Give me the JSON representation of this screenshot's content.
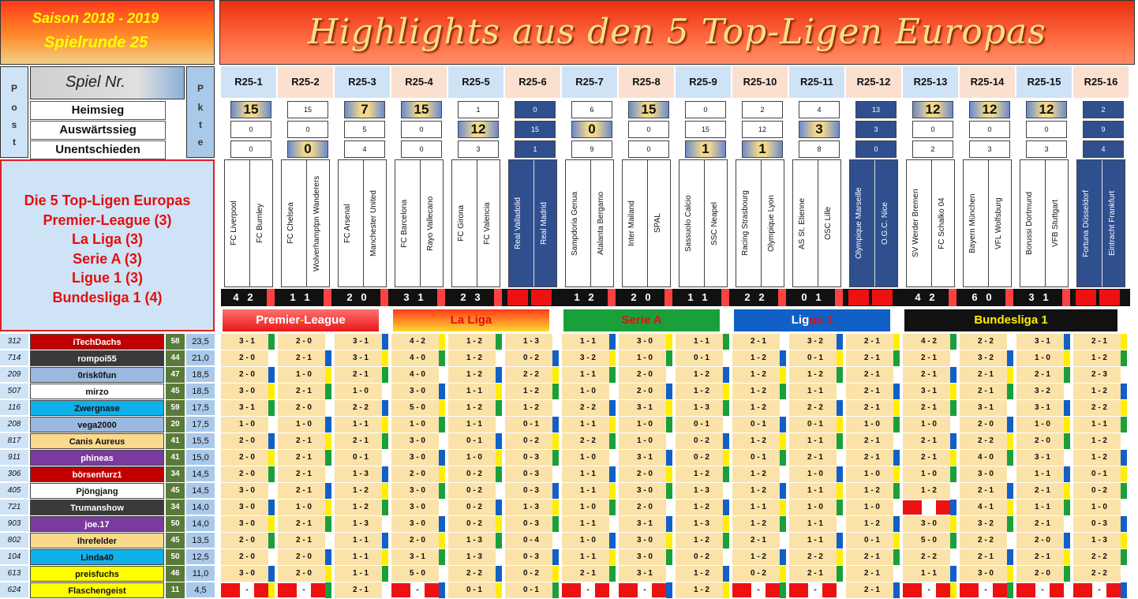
{
  "header": {
    "season": "Saison 2018 - 2019",
    "round": "Spielrunde 25",
    "title": "Highlights aus den 5 Top-Ligen Europas"
  },
  "left": {
    "post_letters": [
      "P",
      "o",
      "s",
      "t"
    ],
    "pkte_letters": [
      "P",
      "k",
      "t",
      "e"
    ],
    "spiel_nr": "Spiel Nr.",
    "heimsieg": "Heimsieg",
    "auswaerts": "Auswärtssieg",
    "unentschieden": "Unentschieden"
  },
  "leagues_box": [
    "Die 5 Top-Ligen Europas",
    "Premier-League (3)",
    "La Liga (3)",
    "Serie A (3)",
    "Ligue 1 (3)",
    "Bundesliga 1 (4)"
  ],
  "league_bars": [
    {
      "pre": "Premier",
      "mid": "-",
      "post": "League",
      "bg": "linear-gradient(180deg,#ff7070,#e81818)",
      "c1": "#ffffff",
      "c2": "#ffe000",
      "c3": "#ffffff"
    },
    {
      "pre": "La Liga",
      "mid": "",
      "post": "",
      "bg": "linear-gradient(180deg,#ff3a1a,#ffd830)",
      "c1": "#e01010",
      "c2": "#e01010",
      "c3": "#e01010"
    },
    {
      "pre": "Serie A",
      "mid": "",
      "post": "",
      "bg": "#1aa03a",
      "c1": "#e01010",
      "c2": "#e01010",
      "c3": "#e01010"
    },
    {
      "pre": "Lig",
      "mid": "ue 1",
      "post": "",
      "bg": "#1060c8",
      "c1": "#ffffff",
      "c2": "#e01010",
      "c3": "#e01010"
    },
    {
      "pre": "Bunde",
      "mid": "sliga 1",
      "post": "",
      "bg": "#111111",
      "c1": "#ffee00",
      "c2": "#ffee00",
      "c3": "#ffee00"
    }
  ],
  "matches": [
    {
      "id": "R25-1",
      "home": "FC Liverpool",
      "away": "FC Burnley",
      "t": [
        "15",
        "0",
        "0"
      ],
      "big": 0,
      "dark": false,
      "res": [
        "4",
        "2"
      ],
      "hb": "#cfe3f7"
    },
    {
      "id": "R25-2",
      "home": "FC Chelsea",
      "away": "Wolverhamptpn Wanderers",
      "t": [
        "15",
        "0",
        "0"
      ],
      "big": 2,
      "dark": false,
      "res": [
        "1",
        "1"
      ],
      "hb": "#fbe0d0"
    },
    {
      "id": "R25-3",
      "home": "FC Arsenal",
      "away": "Manchester United",
      "t": [
        "7",
        "5",
        "4"
      ],
      "big": 0,
      "dark": false,
      "res": [
        "2",
        "0"
      ],
      "hb": "#cfe3f7"
    },
    {
      "id": "R25-4",
      "home": "FC Barcelona",
      "away": "Rayo Vallecano",
      "t": [
        "15",
        "0",
        "0"
      ],
      "big": 0,
      "dark": false,
      "res": [
        "3",
        "1"
      ],
      "hb": "#fbe0d0"
    },
    {
      "id": "R25-5",
      "home": "FC Girona",
      "away": "FC Valencia",
      "t": [
        "1",
        "12",
        "3"
      ],
      "big": 1,
      "dark": false,
      "res": [
        "2",
        "3"
      ],
      "hb": "#cfe3f7"
    },
    {
      "id": "R25-6",
      "home": "Real Valladolid",
      "away": "Real Madrid",
      "t": [
        "0",
        "15",
        "1"
      ],
      "big": -1,
      "dark": true,
      "res": null,
      "hb": "#fbe0d0"
    },
    {
      "id": "R25-7",
      "home": "Sampdoria Genua",
      "away": "Atalanta Bergamo",
      "t": [
        "6",
        "0",
        "9"
      ],
      "big": 1,
      "dark": false,
      "res": [
        "1",
        "2"
      ],
      "hb": "#cfe3f7"
    },
    {
      "id": "R25-8",
      "home": "Inter Mailand",
      "away": "SPAL",
      "t": [
        "15",
        "0",
        "0"
      ],
      "big": 0,
      "dark": false,
      "res": [
        "2",
        "0"
      ],
      "hb": "#fbe0d0"
    },
    {
      "id": "R25-9",
      "home": "Sassuolo Calcio",
      "away": "SSC Neapel",
      "t": [
        "0",
        "15",
        "1"
      ],
      "big": 2,
      "dark": false,
      "res": [
        "1",
        "1"
      ],
      "hb": "#cfe3f7"
    },
    {
      "id": "R25-10",
      "home": "Racing Strasbourg",
      "away": "Olympique Lyon",
      "t": [
        "2",
        "12",
        "1"
      ],
      "big": 2,
      "dark": false,
      "res": [
        "2",
        "2"
      ],
      "hb": "#fbe0d0"
    },
    {
      "id": "R25-11",
      "home": "AS St. Etienne",
      "away": "OSC Lille",
      "t": [
        "4",
        "3",
        "8"
      ],
      "big": 1,
      "dark": false,
      "res": [
        "0",
        "1"
      ],
      "hb": "#cfe3f7"
    },
    {
      "id": "R25-12",
      "home": "Olympique Marseille",
      "away": "O.G.C. Nice",
      "t": [
        "13",
        "3",
        "0"
      ],
      "big": -1,
      "dark": true,
      "res": null,
      "hb": "#fbe0d0"
    },
    {
      "id": "R25-13",
      "home": "SV Werder Bremen",
      "away": "FC Schalko 04",
      "t": [
        "12",
        "0",
        "2"
      ],
      "big": 0,
      "dark": false,
      "res": [
        "4",
        "2"
      ],
      "hb": "#cfe3f7"
    },
    {
      "id": "R25-14",
      "home": "Bayern München",
      "away": "VFL Wolfsburg",
      "t": [
        "12",
        "0",
        "3"
      ],
      "big": 0,
      "dark": false,
      "res": [
        "6",
        "0"
      ],
      "hb": "#fbe0d0"
    },
    {
      "id": "R25-15",
      "home": "Borussi Dortmund",
      "away": "VFB Stuttgart",
      "t": [
        "12",
        "0",
        "3"
      ],
      "big": 0,
      "dark": false,
      "res": [
        "3",
        "1"
      ],
      "hb": "#cfe3f7"
    },
    {
      "id": "R25-16",
      "home": "Fortuna Düsseldorf",
      "away": "Eintracht Frankfurt",
      "t": [
        "2",
        "9",
        "4"
      ],
      "big": -1,
      "dark": true,
      "res": null,
      "hb": "#fbe0d0"
    }
  ],
  "players": [
    {
      "pos": "312",
      "name": "iTechDachs",
      "bg": "#c00000",
      "fg": "#ffffff",
      "cnt": "58",
      "pts": "23,5",
      "tips": [
        "3 - 1",
        "2 - 0",
        "3 - 1",
        "4 - 2",
        "1 - 2",
        "1 - 3",
        "1 - 1",
        "3 - 0",
        "1 - 1",
        "2 - 1",
        "3 - 2",
        "2 - 1",
        "4 - 2",
        "2 - 2",
        "3 - 1",
        "2 - 1"
      ]
    },
    {
      "pos": "714",
      "name": "rompoi55",
      "bg": "#3a3a3a",
      "fg": "#ffffff",
      "cnt": "44",
      "pts": "21,0",
      "tips": [
        "2 - 0",
        "2 - 1",
        "3 - 1",
        "4 - 0",
        "1 - 2",
        "0 - 2",
        "3 - 2",
        "1 - 0",
        "0 - 1",
        "1 - 2",
        "0 - 1",
        "2 - 1",
        "2 - 1",
        "3 - 2",
        "1 - 0",
        "1 - 2"
      ]
    },
    {
      "pos": "209",
      "name": "0risk0fun",
      "bg": "#9bb8e0",
      "fg": "#111111",
      "cnt": "47",
      "pts": "18,5",
      "tips": [
        "2 - 0",
        "1 - 0",
        "2 - 1",
        "4 - 0",
        "1 - 2",
        "2 - 2",
        "1 - 1",
        "2 - 0",
        "1 - 2",
        "1 - 2",
        "1 - 2",
        "2 - 1",
        "2 - 1",
        "2 - 1",
        "2 - 1",
        "2 - 3"
      ]
    },
    {
      "pos": "507",
      "name": "mirzo",
      "bg": "#ffffff",
      "fg": "#111111",
      "cnt": "45",
      "pts": "18,5",
      "tips": [
        "3 - 0",
        "2 - 1",
        "1 - 0",
        "3 - 0",
        "1 - 1",
        "1 - 2",
        "1 - 0",
        "2 - 0",
        "1 - 2",
        "1 - 2",
        "1 - 1",
        "2 - 1",
        "3 - 1",
        "2 - 1",
        "3 - 2",
        "1 - 2"
      ]
    },
    {
      "pos": "116",
      "name": "Zwergnase",
      "bg": "#10b0e8",
      "fg": "#111111",
      "cnt": "59",
      "pts": "17,5",
      "tips": [
        "3 - 1",
        "2 - 0",
        "2 - 2",
        "5 - 0",
        "1 - 2",
        "1 - 2",
        "2 - 2",
        "3 - 1",
        "1 - 3",
        "1 - 2",
        "2 - 2",
        "2 - 1",
        "2 - 1",
        "3 - 1",
        "3 - 1",
        "2 - 2"
      ]
    },
    {
      "pos": "208",
      "name": "vega2000",
      "bg": "#9bb8e0",
      "fg": "#111111",
      "cnt": "20",
      "pts": "17,5",
      "tips": [
        "1 - 0",
        "1 - 0",
        "1 - 1",
        "1 - 0",
        "1 - 1",
        "0 - 1",
        "1 - 1",
        "1 - 0",
        "0 - 1",
        "0 - 1",
        "0 - 1",
        "1 - 0",
        "1 - 0",
        "2 - 0",
        "1 - 0",
        "1 - 1"
      ]
    },
    {
      "pos": "817",
      "name": "Canis Aureus",
      "bg": "#fbd98a",
      "fg": "#111111",
      "cnt": "41",
      "pts": "15,5",
      "tips": [
        "2 - 0",
        "2 - 1",
        "2 - 1",
        "3 - 0",
        "0 - 1",
        "0 - 2",
        "2 - 2",
        "1 - 0",
        "0 - 2",
        "1 - 2",
        "1 - 1",
        "2 - 1",
        "2 - 1",
        "2 - 2",
        "2 - 0",
        "1 - 2"
      ]
    },
    {
      "pos": "911",
      "name": "phineas",
      "bg": "#7a3aa0",
      "fg": "#ffffff",
      "cnt": "41",
      "pts": "15,0",
      "tips": [
        "2 - 0",
        "2 - 1",
        "0 - 1",
        "3 - 0",
        "1 - 0",
        "0 - 3",
        "1 - 0",
        "3 - 1",
        "0 - 2",
        "0 - 1",
        "2 - 1",
        "2 - 1",
        "2 - 1",
        "4 - 0",
        "3 - 1",
        "1 - 2"
      ]
    },
    {
      "pos": "306",
      "name": "börsenfurz1",
      "bg": "#c00000",
      "fg": "#ffffff",
      "cnt": "34",
      "pts": "14,5",
      "tips": [
        "2 - 0",
        "2 - 1",
        "1 - 3",
        "2 - 0",
        "0 - 2",
        "0 - 3",
        "1 - 1",
        "2 - 0",
        "1 - 2",
        "1 - 2",
        "1 - 0",
        "1 - 0",
        "1 - 0",
        "3 - 0",
        "1 - 1",
        "0 - 1"
      ]
    },
    {
      "pos": "405",
      "name": "Pjöngjang",
      "bg": "#ffffff",
      "fg": "#111111",
      "cnt": "45",
      "pts": "14,5",
      "tips": [
        "3 - 0",
        "2 - 1",
        "1 - 2",
        "3 - 0",
        "0 - 2",
        "0 - 3",
        "1 - 1",
        "3 - 0",
        "1 - 3",
        "1 - 2",
        "1 - 1",
        "1 - 2",
        "1 - 2",
        "2 - 1",
        "2 - 1",
        "0 - 2"
      ]
    },
    {
      "pos": "721",
      "name": "Trumanshow",
      "bg": "#3a3a3a",
      "fg": "#ffffff",
      "cnt": "34",
      "pts": "14,0",
      "tips": [
        "3 - 0",
        "1 - 0",
        "1 - 2",
        "3 - 0",
        "0 - 2",
        "1 - 3",
        "1 - 0",
        "2 - 0",
        "1 - 2",
        "1 - 1",
        "1 - 0",
        "1 - 0",
        "",
        "4 - 1",
        "1 - 1",
        "1 - 0"
      ]
    },
    {
      "pos": "903",
      "name": "joe.17",
      "bg": "#7a3aa0",
      "fg": "#ffffff",
      "cnt": "50",
      "pts": "14,0",
      "tips": [
        "3 - 0",
        "2 - 1",
        "1 - 3",
        "3 - 0",
        "0 - 2",
        "0 - 3",
        "1 - 1",
        "3 - 1",
        "1 - 3",
        "1 - 2",
        "1 - 1",
        "1 - 2",
        "3 - 0",
        "3 - 2",
        "2 - 1",
        "0 - 3"
      ]
    },
    {
      "pos": "802",
      "name": "Ihrefelder",
      "bg": "#fbd98a",
      "fg": "#111111",
      "cnt": "45",
      "pts": "13,5",
      "tips": [
        "2 - 0",
        "2 - 1",
        "1 - 1",
        "2 - 0",
        "1 - 3",
        "0 - 4",
        "1 - 0",
        "3 - 0",
        "1 - 2",
        "2 - 1",
        "1 - 1",
        "0 - 1",
        "5 - 0",
        "2 - 2",
        "2 - 0",
        "1 - 3"
      ]
    },
    {
      "pos": "104",
      "name": "Linda40",
      "bg": "#10b0e8",
      "fg": "#111111",
      "cnt": "50",
      "pts": "12,5",
      "tips": [
        "2 - 0",
        "2 - 0",
        "1 - 1",
        "3 - 1",
        "1 - 3",
        "0 - 3",
        "1 - 1",
        "3 - 0",
        "0 - 2",
        "1 - 2",
        "2 - 2",
        "2 - 1",
        "2 - 2",
        "2 - 1",
        "2 - 1",
        "2 - 2"
      ]
    },
    {
      "pos": "613",
      "name": "preisfuchs",
      "bg": "#ffff00",
      "fg": "#111111",
      "cnt": "46",
      "pts": "11,0",
      "tips": [
        "3 - 0",
        "2 - 0",
        "1 - 1",
        "5 - 0",
        "2 - 2",
        "0 - 2",
        "2 - 1",
        "3 - 1",
        "1 - 2",
        "0 - 2",
        "2 - 1",
        "2 - 1",
        "1 - 1",
        "3 - 0",
        "2 - 0",
        "2 - 2"
      ]
    },
    {
      "pos": "624",
      "name": "Flaschengeist",
      "bg": "#ffff00",
      "fg": "#111111",
      "cnt": "11",
      "pts": "4,5",
      "tips": [
        "-",
        "-",
        "2 - 1",
        "-",
        "0 - 1",
        "0 - 1",
        "-",
        "-",
        "1 - 2",
        "-",
        "-",
        "2 - 1",
        "-",
        "-",
        "-",
        "-"
      ]
    }
  ]
}
